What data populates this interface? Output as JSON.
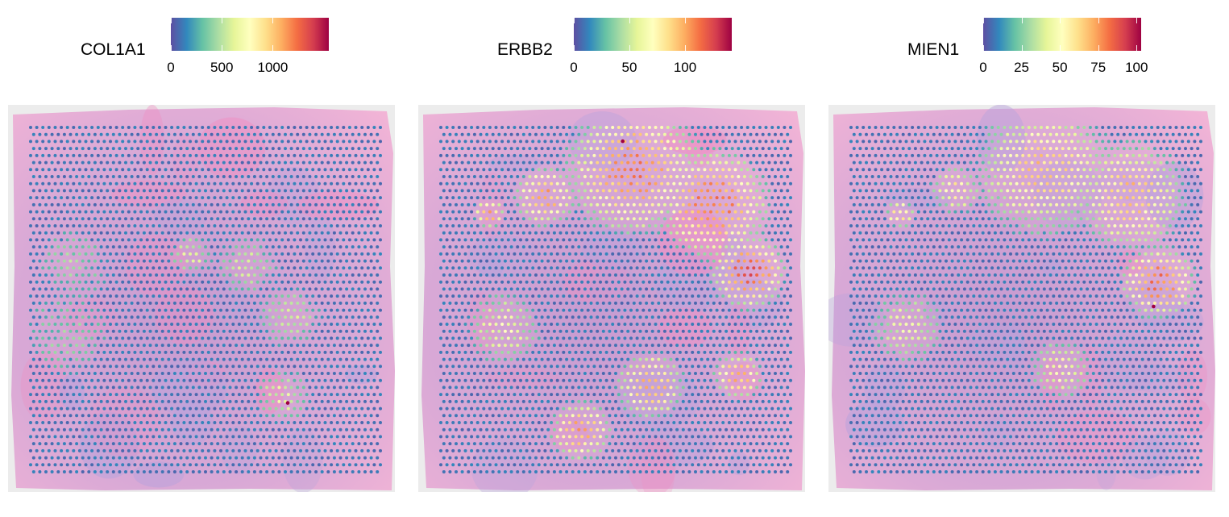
{
  "chart_data": [
    {
      "type": "heatmap",
      "subtype": "spatial-expression-map",
      "gene": "COL1A1",
      "legend_title": "COL1A1",
      "legend_ticks": [
        0,
        500,
        1000
      ],
      "legend_tick_labels": [
        "0",
        "500",
        "1000"
      ],
      "value_range": [
        0,
        1550
      ],
      "colormap": [
        "#5e4fa2",
        "#3288bd",
        "#66c2a5",
        "#abdda4",
        "#e6f598",
        "#ffffbf",
        "#fee08b",
        "#fdae61",
        "#f46d43",
        "#d53e4f",
        "#9e0142"
      ],
      "high_expression_regions": [
        {
          "cx": 0.12,
          "cy": 0.4,
          "r": 0.12,
          "level": 0.28
        },
        {
          "cx": 0.1,
          "cy": 0.6,
          "r": 0.14,
          "level": 0.25
        },
        {
          "cx": 0.46,
          "cy": 0.37,
          "r": 0.07,
          "level": 0.4
        },
        {
          "cx": 0.62,
          "cy": 0.4,
          "r": 0.1,
          "level": 0.35
        },
        {
          "cx": 0.74,
          "cy": 0.55,
          "r": 0.1,
          "level": 0.38
        },
        {
          "cx": 0.72,
          "cy": 0.78,
          "r": 0.09,
          "level": 0.4
        }
      ],
      "max_spot": {
        "value": 1550,
        "fx": 0.735,
        "fy": 0.8
      }
    },
    {
      "type": "heatmap",
      "subtype": "spatial-expression-map",
      "gene": "ERBB2",
      "legend_title": "ERBB2",
      "legend_ticks": [
        0,
        50,
        100
      ],
      "legend_tick_labels": [
        "0",
        "50",
        "100"
      ],
      "value_range": [
        0,
        142
      ],
      "colormap": [
        "#5e4fa2",
        "#3288bd",
        "#66c2a5",
        "#abdda4",
        "#e6f598",
        "#ffffbf",
        "#fee08b",
        "#fdae61",
        "#f46d43",
        "#d53e4f",
        "#9e0142"
      ],
      "high_expression_regions": [
        {
          "cx": 0.55,
          "cy": 0.12,
          "r": 0.22,
          "level": 0.75
        },
        {
          "cx": 0.78,
          "cy": 0.22,
          "r": 0.18,
          "level": 0.78
        },
        {
          "cx": 0.88,
          "cy": 0.42,
          "r": 0.12,
          "level": 0.85
        },
        {
          "cx": 0.3,
          "cy": 0.2,
          "r": 0.1,
          "level": 0.7
        },
        {
          "cx": 0.14,
          "cy": 0.25,
          "r": 0.05,
          "level": 0.7
        },
        {
          "cx": 0.6,
          "cy": 0.75,
          "r": 0.11,
          "level": 0.7
        },
        {
          "cx": 0.4,
          "cy": 0.88,
          "r": 0.1,
          "level": 0.7
        },
        {
          "cx": 0.85,
          "cy": 0.72,
          "r": 0.08,
          "level": 0.7
        },
        {
          "cx": 0.18,
          "cy": 0.58,
          "r": 0.12,
          "level": 0.45
        }
      ],
      "max_spot": {
        "value": 142,
        "fx": 0.52,
        "fy": 0.04
      }
    },
    {
      "type": "heatmap",
      "subtype": "spatial-expression-map",
      "gene": "MIEN1",
      "legend_title": "MIEN1",
      "legend_ticks": [
        0,
        25,
        50,
        75,
        100
      ],
      "legend_tick_labels": [
        "0",
        "25",
        "50",
        "75",
        "100"
      ],
      "value_range": [
        0,
        103
      ],
      "colormap": [
        "#5e4fa2",
        "#3288bd",
        "#66c2a5",
        "#abdda4",
        "#e6f598",
        "#ffffbf",
        "#fee08b",
        "#fdae61",
        "#f46d43",
        "#d53e4f",
        "#9e0142"
      ],
      "high_expression_regions": [
        {
          "cx": 0.55,
          "cy": 0.12,
          "r": 0.22,
          "level": 0.62
        },
        {
          "cx": 0.8,
          "cy": 0.2,
          "r": 0.18,
          "level": 0.65
        },
        {
          "cx": 0.88,
          "cy": 0.45,
          "r": 0.12,
          "level": 0.8
        },
        {
          "cx": 0.3,
          "cy": 0.18,
          "r": 0.08,
          "level": 0.55
        },
        {
          "cx": 0.14,
          "cy": 0.25,
          "r": 0.05,
          "level": 0.6
        },
        {
          "cx": 0.6,
          "cy": 0.7,
          "r": 0.1,
          "level": 0.5
        },
        {
          "cx": 0.16,
          "cy": 0.58,
          "r": 0.12,
          "level": 0.42
        }
      ],
      "max_spot": {
        "value": 103,
        "fx": 0.865,
        "fy": 0.52
      }
    }
  ]
}
